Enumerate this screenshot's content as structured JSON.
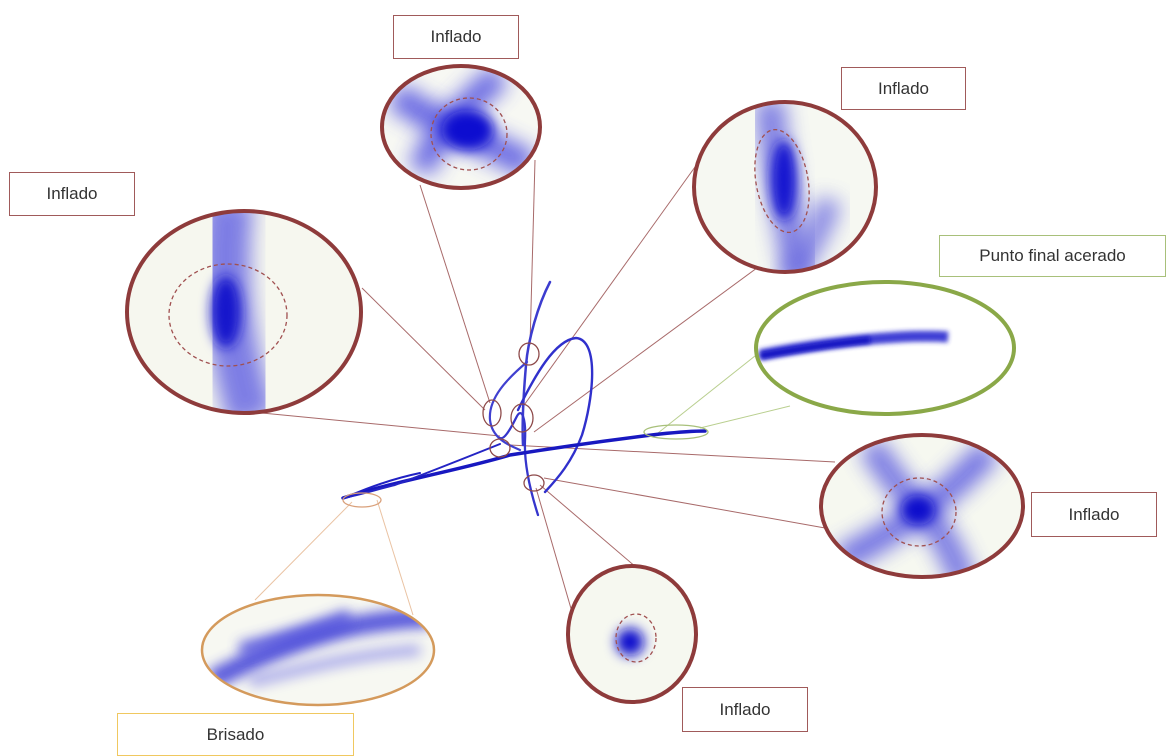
{
  "colors": {
    "stroke": "#2a2ad8",
    "red_ring": "#8e3b3b",
    "green_ring": "#8aa848",
    "orange_ring": "#d49a5c",
    "red_label_border": "#a05a5a",
    "green_label_border": "#a8c07a",
    "orange_label_border": "#f0c860"
  },
  "labels": {
    "inflado_top": "Inflado",
    "inflado_upper_right": "Inflado",
    "inflado_left": "Inflado",
    "punto_final": "Punto final acerado",
    "inflado_right": "Inflado",
    "inflado_bottom": "Inflado",
    "brisado": "Brisado"
  }
}
